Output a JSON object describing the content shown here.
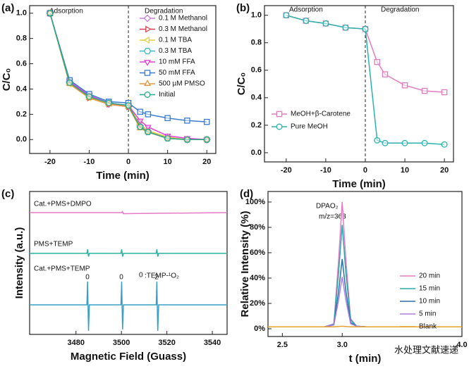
{
  "chart_data": [
    {
      "type": "line",
      "label": "(a)",
      "xlabel": "Time (min)",
      "ylabel": "C/C₀",
      "annotations": [
        "Adsorption",
        "Degradation"
      ],
      "vlines": [
        0
      ],
      "x": [
        -20,
        -15,
        -10,
        -5,
        0,
        3,
        5,
        10,
        15,
        20
      ],
      "xlim": [
        -25.2,
        22.3
      ],
      "xticks": [
        -20,
        -10,
        0,
        10,
        20
      ],
      "ylim": [
        -0.11,
        1.06
      ],
      "yticks": [
        {
          "value": 0,
          "label": "0.0"
        },
        {
          "value": 0.2,
          "label": "0.2"
        },
        {
          "value": 0.4,
          "label": "0.4"
        },
        {
          "value": 0.6,
          "label": "0.6"
        },
        {
          "value": 0.8,
          "label": "0.8"
        },
        {
          "value": 1.0,
          "label": "1.0"
        }
      ],
      "legend": "upper right",
      "series": [
        {
          "name": "0.1 M Methanol",
          "color": "#c57ddb",
          "marker": "diamond",
          "values": [
            1.0,
            0.46,
            0.34,
            0.28,
            0.27,
            0.11,
            0.07,
            0.02,
            0.0,
            0.0
          ]
        },
        {
          "name": "0.3 M Methanol",
          "color": "#dd3f50",
          "marker": "triangle-right",
          "values": [
            1.0,
            0.45,
            0.33,
            0.28,
            0.26,
            0.1,
            0.06,
            0.01,
            0.0,
            0.0
          ]
        },
        {
          "name": "0.1 M TBA",
          "color": "#e4d13a",
          "marker": "triangle-left",
          "values": [
            1.0,
            0.44,
            0.33,
            0.29,
            0.27,
            0.12,
            0.07,
            0.02,
            0.0,
            0.0
          ]
        },
        {
          "name": "0.3 M TBA",
          "color": "#3cb9c9",
          "marker": "hexagon",
          "values": [
            1.0,
            0.45,
            0.34,
            0.29,
            0.27,
            0.1,
            0.06,
            0.01,
            0.0,
            0.0
          ]
        },
        {
          "name": "10 mM FFA",
          "color": "#e33fdc",
          "marker": "triangle-down",
          "values": [
            1.0,
            0.46,
            0.35,
            0.29,
            0.27,
            0.15,
            0.1,
            0.03,
            0.01,
            0.0
          ]
        },
        {
          "name": "50 mM FFA",
          "color": "#3a7bd5",
          "marker": "square",
          "values": [
            1.0,
            0.47,
            0.36,
            0.3,
            0.29,
            0.22,
            0.2,
            0.17,
            0.15,
            0.14
          ]
        },
        {
          "name": "500 µM PMSO",
          "color": "#e5953a",
          "marker": "triangle-up",
          "values": [
            1.0,
            0.44,
            0.33,
            0.28,
            0.26,
            0.09,
            0.06,
            0.01,
            0.0,
            0.0
          ]
        },
        {
          "name": "Initial",
          "color": "#2aaa88",
          "marker": "circle",
          "values": [
            1.0,
            0.45,
            0.34,
            0.29,
            0.27,
            0.1,
            0.06,
            0.01,
            0.0,
            0.0
          ]
        }
      ]
    },
    {
      "type": "line",
      "label": "(b)",
      "xlabel": "Time (min)",
      "ylabel": "C/C₀",
      "annotations": [
        "Adsorption",
        "Degradation"
      ],
      "vlines": [
        0
      ],
      "x": [
        -20,
        -15,
        -10,
        -5,
        0,
        3,
        5,
        10,
        15,
        20
      ],
      "xlim": [
        -25.5,
        22.3
      ],
      "xticks": [
        -20,
        -10,
        0,
        10,
        20
      ],
      "ylim": [
        -0.067,
        1.07
      ],
      "yticks": [
        {
          "value": 0,
          "label": "0.0"
        },
        {
          "value": 0.2,
          "label": "0.2"
        },
        {
          "value": 0.4,
          "label": "0.4"
        },
        {
          "value": 0.6,
          "label": "0.6"
        },
        {
          "value": 0.8,
          "label": "0.8"
        },
        {
          "value": 1.0,
          "label": "1.0"
        }
      ],
      "legend": "lower left",
      "series": [
        {
          "name": "MeOH+β-Carotene",
          "color": "#e27cbf",
          "marker": "square",
          "values": [
            1.0,
            0.96,
            0.94,
            0.91,
            0.9,
            0.66,
            0.57,
            0.49,
            0.45,
            0.44
          ]
        },
        {
          "name": "Pure MeOH",
          "color": "#2ab2ae",
          "marker": "circle",
          "values": [
            1.0,
            0.96,
            0.94,
            0.91,
            0.9,
            0.09,
            0.07,
            0.07,
            0.07,
            0.06
          ]
        }
      ]
    },
    {
      "type": "line",
      "label": "(c)",
      "xlabel": "Magnetic Field (Guass)",
      "ylabel": "Intensity (a.u.)",
      "annotations": [
        "Cat.+PMS+DMPO",
        "PMS+TEMP",
        "Cat.+PMS+TEMP",
        "0",
        ":TEMP-¹O₂",
        "0",
        "0",
        "2"
      ],
      "xlim": [
        3459.6,
        3546.5
      ],
      "xticks": [
        3480,
        3500,
        3520,
        3540
      ],
      "ylim": [
        0,
        10
      ],
      "series": [
        {
          "name": "Cat.+PMS+DMPO",
          "color": "#e77ac6",
          "x": [
            3459.6,
            3500.0,
            3500.4,
            3500.8,
            3546.5
          ],
          "values": [
            8.52,
            8.52,
            8.6,
            8.45,
            8.52
          ]
        },
        {
          "name": "PMS+TEMP",
          "color": "#2ab3a6",
          "x": [
            3459.6,
            3484.8,
            3485.1,
            3485.5,
            3485.9,
            3499.8,
            3500.1,
            3500.5,
            3500.9,
            3515.3,
            3515.6,
            3516.0,
            3516.4,
            3546.5
          ],
          "values": [
            5.67,
            5.67,
            5.95,
            5.45,
            5.67,
            5.67,
            5.95,
            5.45,
            5.67,
            5.67,
            5.95,
            5.45,
            5.67,
            5.67
          ]
        },
        {
          "name": "Cat.+PMS+TEMP",
          "color": "#3a9fc8",
          "x": [
            3459.6,
            3484.8,
            3485.1,
            3485.5,
            3485.9,
            3499.8,
            3500.1,
            3500.5,
            3500.9,
            3515.3,
            3515.6,
            3516.0,
            3516.4,
            3546.5
          ],
          "values": [
            2.07,
            2.07,
            3.7,
            0.25,
            2.07,
            2.07,
            3.7,
            0.35,
            2.07,
            2.07,
            3.7,
            0.25,
            2.07,
            2.07
          ]
        }
      ]
    },
    {
      "type": "line",
      "label": "(d)",
      "xlabel": "t (min)",
      "ylabel": "Relative Intensity (%)",
      "annotations": [
        "DPAO₂",
        "m/z=363"
      ],
      "watermark": "水处理文献速递",
      "x": [
        2.38,
        2.85,
        2.93,
        2.97,
        3.0,
        3.03,
        3.07,
        3.12,
        3.2,
        4.0
      ],
      "xlim": [
        2.38,
        4.0
      ],
      "xticks": [
        {
          "value": 2.5,
          "label": "2.5"
        },
        {
          "value": 3.0,
          "label": "3.0"
        },
        {
          "value": 4.0,
          "label": "4.0"
        }
      ],
      "ylim": [
        -6.1,
        108.3
      ],
      "yticks": [
        {
          "value": 0,
          "label": "0%"
        },
        {
          "value": 20,
          "label": "20%"
        },
        {
          "value": 40,
          "label": "40%"
        },
        {
          "value": 60,
          "label": "60%"
        },
        {
          "value": 80,
          "label": "80%"
        },
        {
          "value": 100,
          "label": "100%"
        }
      ],
      "legend": "lower right",
      "series": [
        {
          "name": "20 min",
          "color": "#e77ac6",
          "values": [
            1.5,
            1.5,
            4,
            55,
            100,
            55,
            8,
            2,
            1.5,
            1.5
          ]
        },
        {
          "name": "15 min",
          "color": "#2aa8a8",
          "values": [
            1.5,
            1.5,
            3.5,
            45,
            82,
            45,
            7,
            2,
            1.5,
            1.5
          ]
        },
        {
          "name": "10 min",
          "color": "#2a6fa8",
          "values": [
            1.5,
            1.5,
            3,
            30,
            55,
            30,
            5,
            2,
            1.5,
            1.5
          ]
        },
        {
          "name": "5 min",
          "color": "#b07fe0",
          "values": [
            1.5,
            1.5,
            3,
            23,
            41,
            23,
            4,
            2,
            1.5,
            1.5
          ]
        },
        {
          "name": "Blank",
          "color": "#e6a02e",
          "values": [
            1.5,
            1.5,
            1.5,
            1.8,
            2,
            1.8,
            1.5,
            1.5,
            1.5,
            1.5
          ]
        }
      ]
    }
  ]
}
